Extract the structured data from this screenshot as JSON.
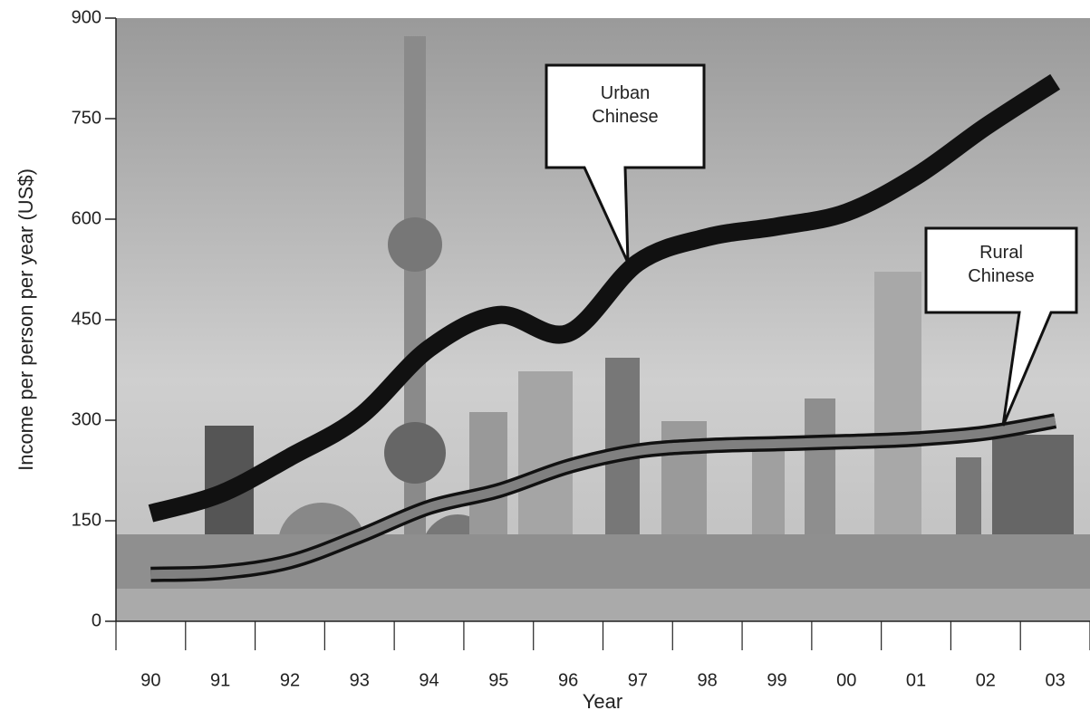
{
  "chart_data": {
    "type": "line",
    "y_label": "Income per person per year (US$)",
    "x_label": "Year",
    "categories": [
      "90",
      "91",
      "92",
      "93",
      "94",
      "95",
      "96",
      "97",
      "98",
      "99",
      "00",
      "01",
      "02",
      "03"
    ],
    "series": [
      {
        "name": "Urban Chinese",
        "color": "#111111",
        "values": [
          161,
          190,
          245,
          305,
          407,
          457,
          430,
          535,
          573,
          589,
          610,
          664,
          738,
          805
        ]
      },
      {
        "name": "Rural Chinese",
        "color": "#808080",
        "values": [
          70,
          73,
          89,
          127,
          170,
          195,
          231,
          254,
          262,
          265,
          268,
          272,
          281,
          299
        ]
      }
    ],
    "ylim": [
      0,
      900
    ],
    "yticks": [
      0,
      150,
      300,
      450,
      600,
      750,
      900
    ],
    "grid": false
  }
}
